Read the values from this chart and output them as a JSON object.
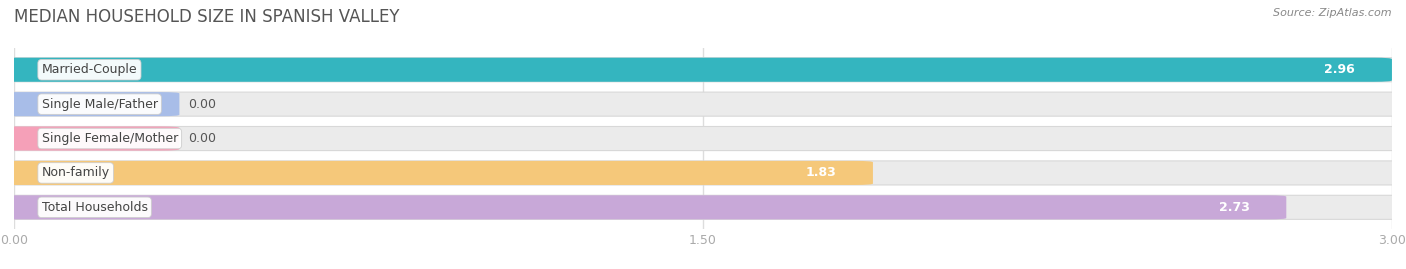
{
  "title": "MEDIAN HOUSEHOLD SIZE IN SPANISH VALLEY",
  "source": "Source: ZipAtlas.com",
  "categories": [
    "Married-Couple",
    "Single Male/Father",
    "Single Female/Mother",
    "Non-family",
    "Total Households"
  ],
  "values": [
    2.96,
    0.0,
    0.0,
    1.83,
    2.73
  ],
  "bar_colors": [
    "#34b5bf",
    "#a8bde8",
    "#f5a0b8",
    "#f5c87a",
    "#c8a8d8"
  ],
  "background_color": "#ffffff",
  "bar_bg_color": "#ebebeb",
  "xlim": [
    0,
    3.0
  ],
  "xticks": [
    0.0,
    1.5,
    3.0
  ],
  "xtick_labels": [
    "0.00",
    "1.50",
    "3.00"
  ],
  "title_fontsize": 12,
  "label_fontsize": 9,
  "value_fontsize": 9,
  "small_bar_width": 0.32
}
